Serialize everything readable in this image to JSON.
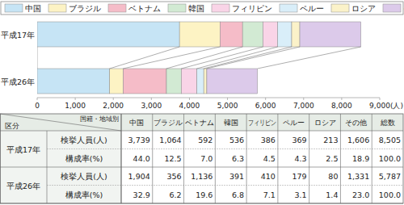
{
  "chart_data": {
    "type": "bar",
    "orientation": "horizontal",
    "stacked": true,
    "legend": "top",
    "xlabel": "(人)",
    "categories": [
      "平成17年",
      "平成26年"
    ],
    "series": [
      {
        "name": "中国",
        "color": "#c6e4f5",
        "values": [
          3739,
          1904
        ]
      },
      {
        "name": "ブラジル",
        "color": "#fdf3c4",
        "values": [
          1064,
          356
        ]
      },
      {
        "name": "ベトナム",
        "color": "#f5bcc8",
        "values": [
          592,
          1136
        ]
      },
      {
        "name": "韓国",
        "color": "#d2ead3",
        "values": [
          536,
          391
        ]
      },
      {
        "name": "フィリピン",
        "color": "#f9d4e7",
        "values": [
          386,
          410
        ]
      },
      {
        "name": "ペルー",
        "color": "#d9eef9",
        "values": [
          369,
          179
        ]
      },
      {
        "name": "ロシア",
        "color": "#fbf2c9",
        "values": [
          213,
          80
        ]
      },
      {
        "name": "その他",
        "color": "#dccaea",
        "values": [
          1606,
          1331
        ]
      }
    ],
    "xlim": [
      0,
      9000
    ],
    "xticks": [
      0,
      {
        "value": 1000,
        "label": "1,000"
      },
      {
        "value": 2000,
        "label": "2,000"
      },
      {
        "value": 3000,
        "label": "3,000"
      },
      {
        "value": 4000,
        "label": "4,000"
      },
      {
        "value": 5000,
        "label": "5,000"
      },
      {
        "value": 6000,
        "label": "6,000"
      },
      {
        "value": 7000,
        "label": "7,000"
      },
      {
        "value": 8000,
        "label": "8,000"
      },
      {
        "value": 9000,
        "label": "9,000"
      }
    ]
  },
  "table": {
    "corner_row": "区分",
    "corner_col": "国籍・地域別",
    "columns": [
      "中国",
      "ブラジル",
      "ベトナム",
      "韓国",
      "フィリピン",
      "ペルー",
      "ロシア",
      "その他",
      "総数"
    ],
    "groups": [
      {
        "label": "平成17年",
        "rows": [
          {
            "label": "検挙人員(人)",
            "cells": [
              "3,739",
              "1,064",
              "592",
              "536",
              "386",
              "369",
              "213",
              "1,606",
              "8,505"
            ]
          },
          {
            "label": "構成率(%)",
            "cells": [
              "44.0",
              "12.5",
              "7.0",
              "6.3",
              "4.5",
              "4.3",
              "2.5",
              "18.9",
              "100.0"
            ]
          }
        ]
      },
      {
        "label": "平成26年",
        "rows": [
          {
            "label": "検挙人員(人)",
            "cells": [
              "1,904",
              "356",
              "1,136",
              "391",
              "410",
              "179",
              "80",
              "1,331",
              "5,787"
            ]
          },
          {
            "label": "構成率(%)",
            "cells": [
              "32.9",
              "6.2",
              "19.6",
              "6.8",
              "7.1",
              "3.1",
              "1.4",
              "23.0",
              "100.0"
            ]
          }
        ]
      }
    ]
  }
}
